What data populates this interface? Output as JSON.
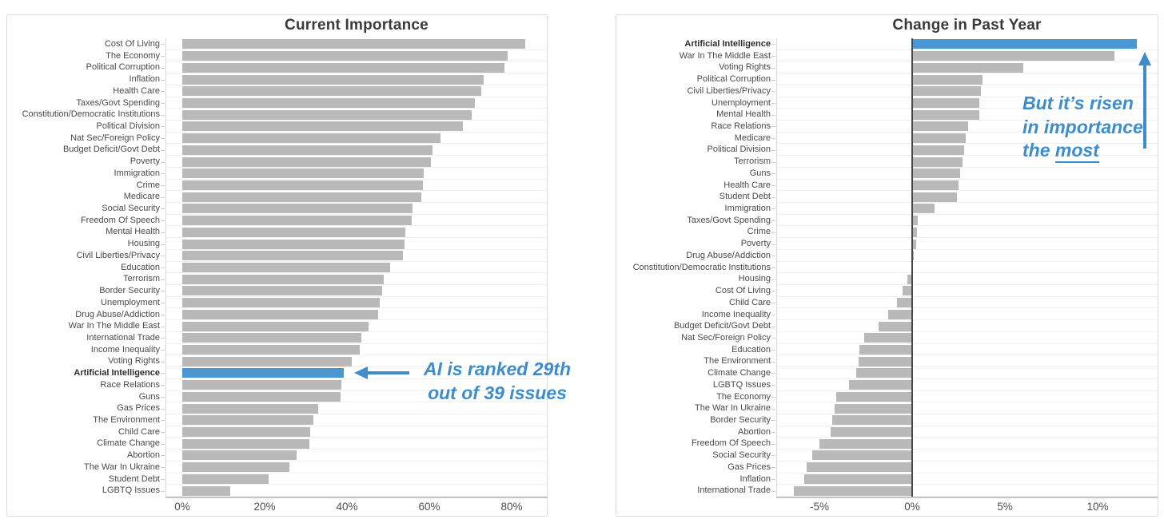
{
  "page": {
    "background": "#ffffff"
  },
  "colors": {
    "highlight_blue": "#4a97d2",
    "bar_gray": "#b9b9b9",
    "annotation_blue": "#3f8ccb",
    "title_color": "#3a3a3a",
    "label_color": "#4a4a4a",
    "tick_color": "#4f4f4f"
  },
  "chart_data": [
    {
      "type": "bar",
      "orientation": "horizontal",
      "title": "Current Importance",
      "xlabel": "",
      "ylabel": "",
      "unit": "%",
      "xlim": [
        0,
        88.5
      ],
      "grid": "horizontal-row-lines",
      "legend": "none",
      "highlight_category": "Artificial Intelligence",
      "xticks": [
        {
          "value": 0,
          "label": "0%"
        },
        {
          "value": 20,
          "label": "20%"
        },
        {
          "value": 40,
          "label": "40%"
        },
        {
          "value": 60,
          "label": "60%"
        },
        {
          "value": 80,
          "label": "80%"
        }
      ],
      "categories": [
        "Cost Of Living",
        "The Economy",
        "Political Corruption",
        "Inflation",
        "Health Care",
        "Taxes/Govt Spending",
        "Constitution/Democratic Institutions",
        "Political Division",
        "Nat Sec/Foreign Policy",
        "Budget Deficit/Govt Debt",
        "Poverty",
        "Immigration",
        "Crime",
        "Medicare",
        "Social Security",
        "Freedom Of Speech",
        "Mental Health",
        "Housing",
        "Civil Liberties/Privacy",
        "Education",
        "Terrorism",
        "Border Security",
        "Unemployment",
        "Drug Abuse/Addiction",
        "War In The Middle East",
        "International Trade",
        "Income Inequality",
        "Voting Rights",
        "Artificial Intelligence",
        "Race Relations",
        "Guns",
        "Gas Prices",
        "The Environment",
        "Child Care",
        "Climate Change",
        "Abortion",
        "The War In Ukraine",
        "Student Debt",
        "LGBTQ Issues"
      ],
      "values": [
        83.3,
        79.0,
        78.3,
        73.3,
        72.6,
        71.1,
        70.2,
        68.2,
        62.8,
        60.7,
        60.3,
        58.6,
        58.5,
        58.1,
        55.9,
        55.7,
        54.1,
        53.9,
        53.5,
        50.5,
        48.9,
        48.5,
        48.0,
        47.6,
        45.2,
        43.5,
        43.1,
        41.2,
        39.2,
        38.6,
        38.5,
        33.0,
        31.8,
        31.1,
        30.8,
        27.8,
        26.0,
        21.0,
        11.7
      ],
      "annotation": {
        "lines": [
          "AI is ranked 29th",
          "out of 39 issues"
        ],
        "underline": null,
        "arrow": "left-pointing-at-ai-bar"
      }
    },
    {
      "type": "bar",
      "orientation": "horizontal",
      "title": "Change in Past Year",
      "xlabel": "",
      "ylabel": "",
      "unit": "%",
      "xlim": [
        -7.3,
        13.2
      ],
      "grid": "horizontal-row-lines",
      "legend": "none",
      "highlight_category": "Artificial Intelligence",
      "xticks": [
        {
          "value": -5,
          "label": "-5%"
        },
        {
          "value": 0,
          "label": "0%"
        },
        {
          "value": 5,
          "label": "5%"
        },
        {
          "value": 10,
          "label": "10%"
        }
      ],
      "categories": [
        "Artificial Intelligence",
        "War In The Middle East",
        "Voting Rights",
        "Political Corruption",
        "Civil Liberties/Privacy",
        "Unemployment",
        "Mental Health",
        "Race Relations",
        "Medicare",
        "Political Division",
        "Terrorism",
        "Guns",
        "Health Care",
        "Student Debt",
        "Immigration",
        "Taxes/Govt Spending",
        "Crime",
        "Poverty",
        "Drug Abuse/Addiction",
        "Constitution/Democratic Institutions",
        "Housing",
        "Cost Of Living",
        "Child Care",
        "Income Inequality",
        "Budget Deficit/Govt Debt",
        "Nat Sec/Foreign Policy",
        "Education",
        "The Environment",
        "Climate Change",
        "LGBTQ Issues",
        "The Economy",
        "The War In Ukraine",
        "Border Security",
        "Abortion",
        "Freedom Of Speech",
        "Social Security",
        "Gas Prices",
        "Inflation",
        "International Trade"
      ],
      "values": [
        12.1,
        10.9,
        6.0,
        3.8,
        3.7,
        3.6,
        3.6,
        3.0,
        2.9,
        2.8,
        2.7,
        2.6,
        2.5,
        2.4,
        1.2,
        0.3,
        0.25,
        0.2,
        0.1,
        0.05,
        -0.25,
        -0.5,
        -0.8,
        -1.3,
        -1.8,
        -2.6,
        -2.85,
        -2.9,
        -3.0,
        -3.4,
        -4.1,
        -4.2,
        -4.3,
        -4.4,
        -5.0,
        -5.4,
        -5.7,
        -5.8,
        -6.4
      ],
      "annotation": {
        "lines": [
          "But it’s risen",
          "in importance",
          "the most"
        ],
        "underline": "most",
        "arrow": "up-pointing-at-ai-bar"
      }
    }
  ]
}
